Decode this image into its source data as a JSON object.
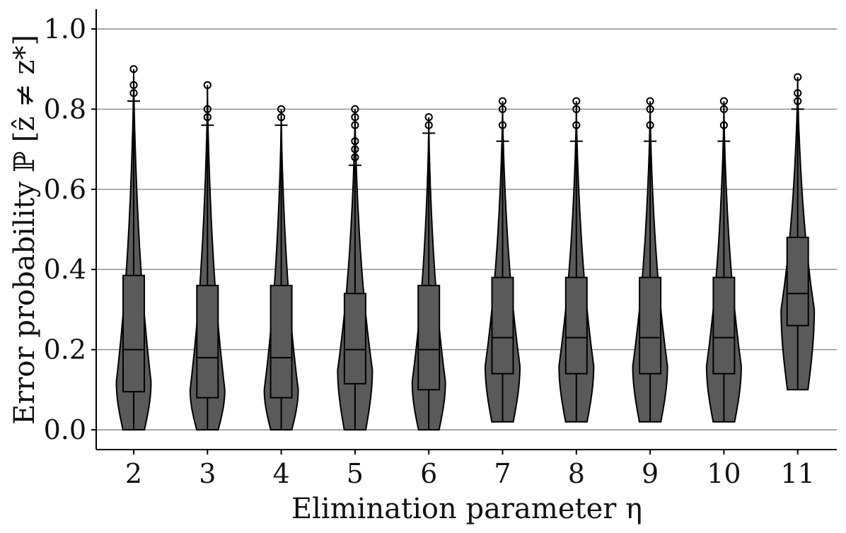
{
  "chart_data": {
    "type": "violin",
    "title": "",
    "xlabel": "Elimination parameter η",
    "ylabel": "Error probability ℙ [ẑ ≠ z*]",
    "ylim": [
      -0.05,
      1.05
    ],
    "yticks": [
      "0.0",
      "0.2",
      "0.4",
      "0.6",
      "0.8",
      "1.0"
    ],
    "ytick_values": [
      0.0,
      0.2,
      0.4,
      0.6,
      0.8,
      1.0
    ],
    "grid": "horizontal",
    "categories": [
      "2",
      "3",
      "4",
      "5",
      "6",
      "7",
      "8",
      "9",
      "10",
      "11"
    ],
    "fill_color": "#5a5a5a",
    "edge_color": "#000000",
    "grid_color": "#8a8a8a",
    "violins": [
      {
        "eta": "2",
        "min": 0.0,
        "q1": 0.095,
        "median": 0.2,
        "q3": 0.385,
        "whisker_high": 0.82,
        "max": 0.9,
        "outliers": [
          0.84,
          0.86,
          0.9
        ],
        "peak": 0.12,
        "width": 0.47
      },
      {
        "eta": "3",
        "min": 0.0,
        "q1": 0.08,
        "median": 0.18,
        "q3": 0.36,
        "whisker_high": 0.76,
        "max": 0.86,
        "outliers": [
          0.78,
          0.8,
          0.86
        ],
        "peak": 0.1,
        "width": 0.47
      },
      {
        "eta": "4",
        "min": 0.0,
        "q1": 0.08,
        "median": 0.18,
        "q3": 0.36,
        "whisker_high": 0.76,
        "max": 0.8,
        "outliers": [
          0.78,
          0.8
        ],
        "peak": 0.1,
        "width": 0.46
      },
      {
        "eta": "5",
        "min": 0.0,
        "q1": 0.115,
        "median": 0.2,
        "q3": 0.34,
        "whisker_high": 0.66,
        "max": 0.8,
        "outliers": [
          0.68,
          0.7,
          0.72,
          0.76,
          0.78,
          0.8
        ],
        "peak": 0.15,
        "width": 0.47
      },
      {
        "eta": "6",
        "min": 0.0,
        "q1": 0.1,
        "median": 0.2,
        "q3": 0.36,
        "whisker_high": 0.74,
        "max": 0.78,
        "outliers": [
          0.76,
          0.78
        ],
        "peak": 0.12,
        "width": 0.45
      },
      {
        "eta": "7",
        "min": 0.02,
        "q1": 0.14,
        "median": 0.23,
        "q3": 0.38,
        "whisker_high": 0.72,
        "max": 0.82,
        "outliers": [
          0.76,
          0.8,
          0.82
        ],
        "peak": 0.16,
        "width": 0.47
      },
      {
        "eta": "8",
        "min": 0.02,
        "q1": 0.14,
        "median": 0.23,
        "q3": 0.38,
        "whisker_high": 0.72,
        "max": 0.82,
        "outliers": [
          0.76,
          0.8,
          0.82
        ],
        "peak": 0.16,
        "width": 0.47
      },
      {
        "eta": "9",
        "min": 0.02,
        "q1": 0.14,
        "median": 0.23,
        "q3": 0.38,
        "whisker_high": 0.72,
        "max": 0.82,
        "outliers": [
          0.76,
          0.8,
          0.82
        ],
        "peak": 0.16,
        "width": 0.47
      },
      {
        "eta": "10",
        "min": 0.02,
        "q1": 0.14,
        "median": 0.23,
        "q3": 0.38,
        "whisker_high": 0.72,
        "max": 0.82,
        "outliers": [
          0.76,
          0.8,
          0.82
        ],
        "peak": 0.16,
        "width": 0.47
      },
      {
        "eta": "11",
        "min": 0.1,
        "q1": 0.26,
        "median": 0.34,
        "q3": 0.48,
        "whisker_high": 0.8,
        "max": 0.88,
        "outliers": [
          0.82,
          0.84,
          0.88
        ],
        "peak": 0.3,
        "width": 0.45
      }
    ]
  }
}
